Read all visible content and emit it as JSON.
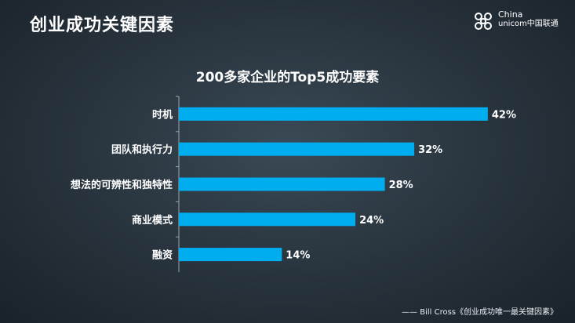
{
  "slide": {
    "title": "创业成功关键因素",
    "source": "—— Bill Cross《创业成功唯一最关键因素》"
  },
  "logo": {
    "name_en": "China",
    "name_en2": "unicom中国联通"
  },
  "chart_data": {
    "type": "bar",
    "orientation": "horizontal",
    "title": "200多家企业的Top5成功要素",
    "categories": [
      "时机",
      "团队和执行力",
      "想法的可辨性和独特性",
      "商业模式",
      "融资"
    ],
    "values": [
      42,
      32,
      28,
      24,
      14
    ],
    "value_labels": [
      "42%",
      "32%",
      "28%",
      "24%",
      "14%"
    ],
    "unit": "%",
    "xlim": [
      0,
      45
    ],
    "bar_color": "#00aeef",
    "grid": false,
    "legend": "none"
  }
}
